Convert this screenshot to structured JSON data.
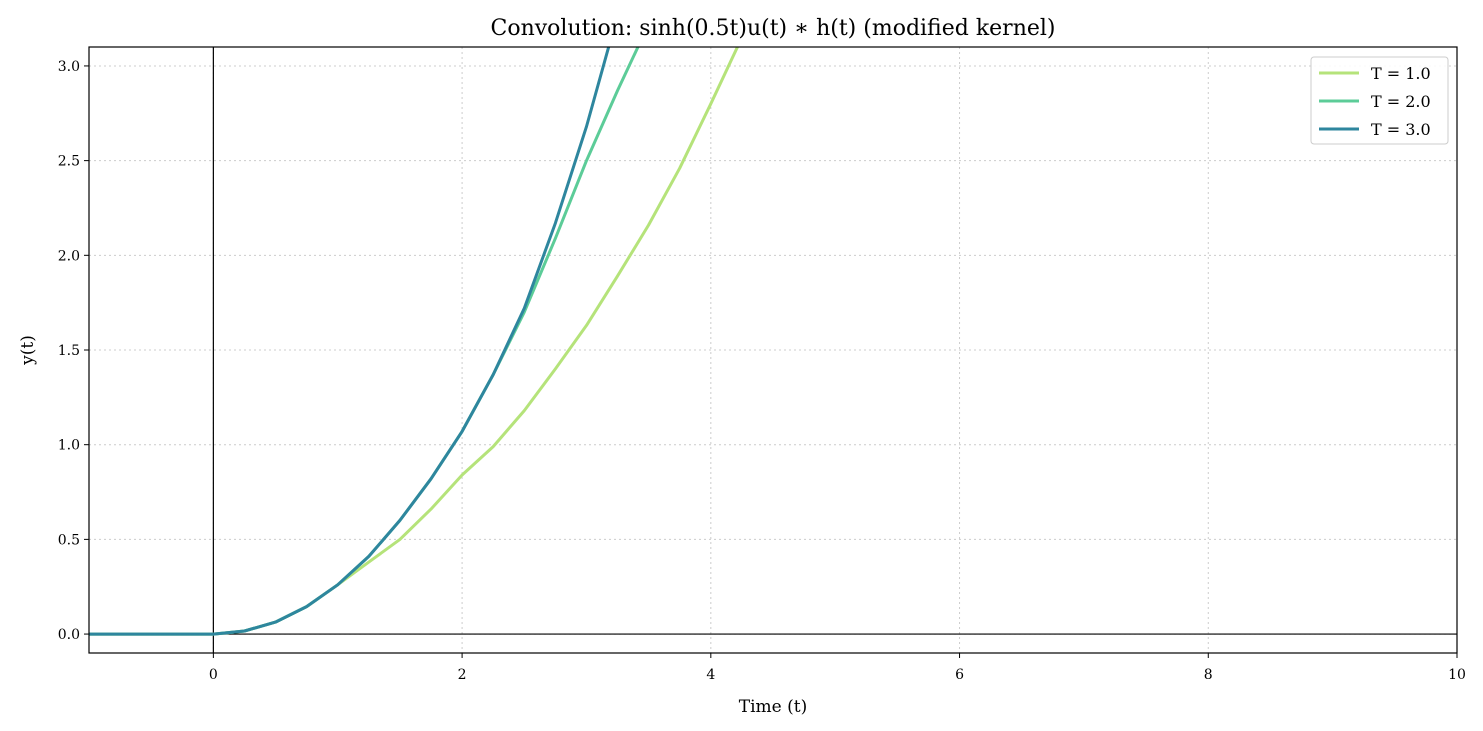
{
  "chart_data": {
    "type": "line",
    "title": "Convolution: sinh(0.5t)u(t) ∗ h(t) (modified kernel)",
    "xlabel": "Time (t)",
    "ylabel": "y(t)",
    "xlim": [
      -1,
      10
    ],
    "ylim": [
      -0.1,
      3.1
    ],
    "x_ticks": [
      0,
      2,
      4,
      6,
      8,
      10
    ],
    "x_tick_labels": [
      "0",
      "2",
      "4",
      "6",
      "8",
      "10"
    ],
    "y_ticks": [
      0.0,
      0.5,
      1.0,
      1.5,
      2.0,
      2.5,
      3.0
    ],
    "y_tick_labels": [
      "0.0",
      "0.5",
      "1.0",
      "1.5",
      "2.0",
      "2.5",
      "3.0"
    ],
    "grid": true,
    "legend_position": "top-right",
    "reference_lines": {
      "x": 0,
      "y": 0
    },
    "series": [
      {
        "name": "T = 1.0",
        "color": "#b5e37a",
        "x": [
          -1,
          0,
          0.25,
          0.5,
          0.75,
          1.0,
          1.25,
          1.5,
          1.75,
          2.0,
          2.25,
          2.5,
          2.75,
          3.0,
          3.25,
          3.5,
          3.75,
          4.0,
          4.25
        ],
        "y": [
          0,
          0,
          0.016,
          0.063,
          0.145,
          0.26,
          0.38,
          0.5,
          0.66,
          0.84,
          0.99,
          1.18,
          1.4,
          1.63,
          1.89,
          2.16,
          2.46,
          2.8,
          3.15
        ]
      },
      {
        "name": "T = 2.0",
        "color": "#5ccc98",
        "x": [
          -1,
          0,
          0.25,
          0.5,
          0.75,
          1.0,
          1.25,
          1.5,
          1.75,
          2.0,
          2.25,
          2.5,
          2.75,
          3.0,
          3.25,
          3.45
        ],
        "y": [
          0,
          0,
          0.016,
          0.063,
          0.145,
          0.26,
          0.41,
          0.6,
          0.82,
          1.07,
          1.37,
          1.7,
          2.09,
          2.5,
          2.87,
          3.15
        ]
      },
      {
        "name": "T = 3.0",
        "color": "#2e869e",
        "x": [
          -1,
          0,
          0.25,
          0.5,
          0.75,
          1.0,
          1.25,
          1.5,
          1.75,
          2.0,
          2.25,
          2.5,
          2.75,
          3.0,
          3.2
        ],
        "y": [
          0,
          0,
          0.016,
          0.063,
          0.145,
          0.26,
          0.41,
          0.6,
          0.82,
          1.07,
          1.37,
          1.72,
          2.17,
          2.68,
          3.15
        ]
      }
    ]
  }
}
